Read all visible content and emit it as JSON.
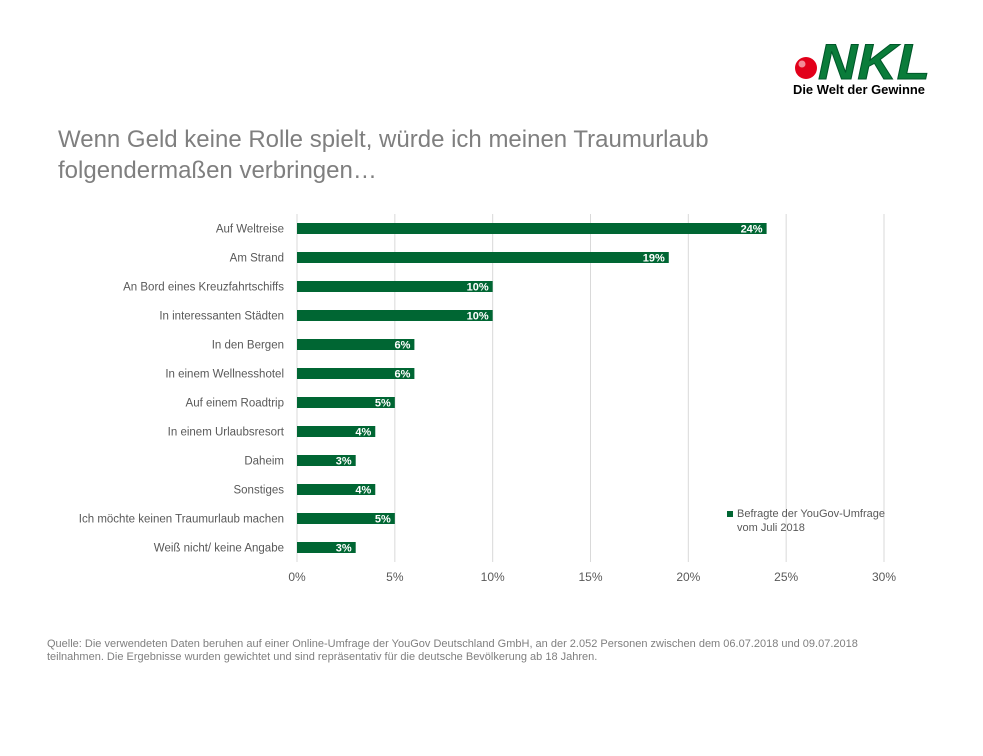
{
  "logo": {
    "wordmark": "NKL",
    "tagline": "Die Welt der Gewinne",
    "colors": {
      "green": "#0a7c3a",
      "dark_green": "#00582a",
      "red": "#e2001a"
    }
  },
  "title_lines": [
    "Wenn Geld keine Rolle spielt, würde ich meinen Traumurlaub",
    "folgendermaßen verbringen…"
  ],
  "source_lines": [
    "Quelle: Die verwendeten Daten beruhen auf einer Online-Umfrage der YouGov Deutschland GmbH, an der 2.052 Personen zwischen dem 06.07.2018 und 09.07.2018",
    "teilnahmen. Die Ergebnisse wurden gewichtet und sind repräsentativ für die deutsche Bevölkerung ab 18 Jahren."
  ],
  "chart_data": {
    "type": "bar",
    "orientation": "horizontal",
    "categories": [
      "Auf Weltreise",
      "Am Strand",
      "An Bord eines Kreuzfahrtschiffs",
      "In interessanten Städten",
      "In den Bergen",
      "In einem Wellnesshotel",
      "Auf einem Roadtrip",
      "In einem Urlaubsresort",
      "Daheim",
      "Sonstiges",
      "Ich möchte keinen Traumurlaub machen",
      "Weiß nicht/ keine Angabe"
    ],
    "series": [
      {
        "name": "Befragte der YouGov-Umfrage vom Juli 2018",
        "name_lines": [
          "Befragte der YouGov-Umfrage",
          "vom Juli 2018"
        ],
        "values": [
          24,
          19,
          10,
          10,
          6,
          6,
          5,
          4,
          3,
          4,
          5,
          3
        ],
        "labels": [
          "24%",
          "19%",
          "10%",
          "10%",
          "6%",
          "6%",
          "5%",
          "4%",
          "3%",
          "4%",
          "5%",
          "3%"
        ],
        "color": "#006633"
      }
    ],
    "xlim": [
      0,
      30
    ],
    "xticks": [
      0,
      5,
      10,
      15,
      20,
      25,
      30
    ],
    "xtick_labels": [
      "0%",
      "5%",
      "10%",
      "15%",
      "20%",
      "25%",
      "30%"
    ],
    "grid": true,
    "legend": "right"
  }
}
